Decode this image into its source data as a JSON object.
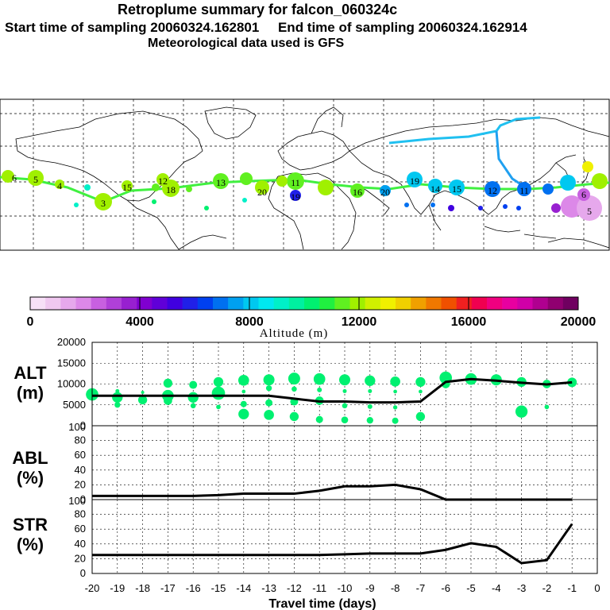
{
  "header": {
    "title": "Retroplume summary for falcon_060324c",
    "start_label": "Start time of sampling 20060324.162801",
    "end_label": "End time of sampling 20060324.162914",
    "met_label": "Meteorological data used is GFS"
  },
  "colorbar": {
    "label": "Altitude (m)",
    "tick_labels": [
      "0",
      "4000",
      "8000",
      "12000",
      "16000",
      "20000"
    ],
    "colors": [
      "#f7e0f7",
      "#f0c8f0",
      "#e6a8ec",
      "#dc88e8",
      "#c860e0",
      "#b040d8",
      "#9820d0",
      "#8000d0",
      "#6000d8",
      "#4000e0",
      "#2020e8",
      "#0040f0",
      "#0070f0",
      "#00a0f0",
      "#00c8f0",
      "#00e8f0",
      "#00f0c8",
      "#00f0a0",
      "#00f070",
      "#20f040",
      "#60f020",
      "#a0f000",
      "#d0f000",
      "#f0f000",
      "#f0d000",
      "#f0a000",
      "#f07800",
      "#f05000",
      "#f02020",
      "#f00050",
      "#f00080",
      "#e800a0",
      "#d000a8",
      "#b00090",
      "#900070",
      "#700060"
    ]
  },
  "map": {
    "labels": [
      {
        "text": "6",
        "c": "#a0f000"
      },
      {
        "text": "5",
        "c": "#a0f000"
      },
      {
        "text": "4",
        "c": "#a0f000"
      },
      {
        "text": "3",
        "c": "#a0f000"
      },
      {
        "text": "15",
        "c": "#a0f000"
      },
      {
        "text": "12",
        "c": "#a0f000"
      },
      {
        "text": "18",
        "c": "#a0f000"
      },
      {
        "text": "13",
        "c": "#60f020"
      },
      {
        "text": "11",
        "c": "#60f020"
      },
      {
        "text": "20",
        "c": "#60f020"
      },
      {
        "text": "19",
        "c": "#00a0f0"
      },
      {
        "text": "16",
        "c": "#00c8f0"
      },
      {
        "text": "20",
        "c": "#00c8f0"
      },
      {
        "text": "19",
        "c": "#00c8f0"
      },
      {
        "text": "14",
        "c": "#0070f0"
      },
      {
        "text": "15",
        "c": "#0070f0"
      },
      {
        "text": "12",
        "c": "#c860e0"
      },
      {
        "text": "11",
        "c": "#dc88e8"
      },
      {
        "text": "6",
        "c": "#a0f000"
      },
      {
        "text": "5",
        "c": "#f0f000"
      }
    ]
  },
  "chart_data": [
    {
      "type": "line",
      "panel": "ALT",
      "ylabel": "ALT (m)",
      "ylim": [
        0,
        20000
      ],
      "yticks": [
        "0",
        "5000",
        "10000",
        "15000",
        "20000"
      ],
      "x": [
        -20,
        -19,
        -18,
        -17,
        -16,
        -15,
        -14,
        -13,
        -12,
        -11,
        -10,
        -9,
        -8,
        -7,
        -6,
        -5,
        -4,
        -3,
        -2,
        -1
      ],
      "values": [
        7200,
        7200,
        7200,
        7200,
        7200,
        7200,
        7200,
        7200,
        6500,
        5800,
        5800,
        5600,
        5600,
        5800,
        10500,
        11200,
        10800,
        10300,
        9900,
        10400
      ],
      "scatter": [
        {
          "x": -20,
          "y": 7500
        },
        {
          "x": -19,
          "y": 8300
        },
        {
          "x": -19,
          "y": 6800
        },
        {
          "x": -19,
          "y": 5000
        },
        {
          "x": -18,
          "y": 8000
        },
        {
          "x": -18,
          "y": 6200
        },
        {
          "x": -17,
          "y": 10200
        },
        {
          "x": -17,
          "y": 7200
        },
        {
          "x": -17,
          "y": 6000
        },
        {
          "x": -16,
          "y": 9800
        },
        {
          "x": -16,
          "y": 6800
        },
        {
          "x": -16,
          "y": 4800
        },
        {
          "x": -15,
          "y": 10500
        },
        {
          "x": -15,
          "y": 7800
        },
        {
          "x": -15,
          "y": 4500
        },
        {
          "x": -14,
          "y": 10900
        },
        {
          "x": -14,
          "y": 8200
        },
        {
          "x": -14,
          "y": 5200
        },
        {
          "x": -14,
          "y": 2800
        },
        {
          "x": -13,
          "y": 11000
        },
        {
          "x": -13,
          "y": 9000
        },
        {
          "x": -13,
          "y": 5500
        },
        {
          "x": -13,
          "y": 2600
        },
        {
          "x": -12,
          "y": 11300
        },
        {
          "x": -12,
          "y": 8800
        },
        {
          "x": -12,
          "y": 5800
        },
        {
          "x": -12,
          "y": 2200
        },
        {
          "x": -11,
          "y": 11200
        },
        {
          "x": -11,
          "y": 8600
        },
        {
          "x": -11,
          "y": 6000
        },
        {
          "x": -11,
          "y": 1500
        },
        {
          "x": -10,
          "y": 11000
        },
        {
          "x": -10,
          "y": 8300
        },
        {
          "x": -10,
          "y": 4800
        },
        {
          "x": -10,
          "y": 1400
        },
        {
          "x": -9,
          "y": 10800
        },
        {
          "x": -9,
          "y": 8300
        },
        {
          "x": -9,
          "y": 4600
        },
        {
          "x": -9,
          "y": 1300
        },
        {
          "x": -8,
          "y": 10600
        },
        {
          "x": -8,
          "y": 8200
        },
        {
          "x": -8,
          "y": 4400
        },
        {
          "x": -8,
          "y": 1200
        },
        {
          "x": -7,
          "y": 10500
        },
        {
          "x": -7,
          "y": 8200
        },
        {
          "x": -7,
          "y": 2200
        },
        {
          "x": -6,
          "y": 11500
        },
        {
          "x": -6,
          "y": 10000
        },
        {
          "x": -5,
          "y": 11200
        },
        {
          "x": -4,
          "y": 11000
        },
        {
          "x": -3,
          "y": 10500
        },
        {
          "x": -3,
          "y": 3400
        },
        {
          "x": -2,
          "y": 10000
        },
        {
          "x": -2,
          "y": 4500
        },
        {
          "x": -1,
          "y": 10400
        }
      ]
    },
    {
      "type": "line",
      "panel": "ABL",
      "ylabel": "ABL (%)",
      "ylim": [
        0,
        100
      ],
      "yticks": [
        "0",
        "20",
        "40",
        "60",
        "80",
        "100"
      ],
      "x": [
        -20,
        -19,
        -18,
        -17,
        -16,
        -15,
        -14,
        -13,
        -12,
        -11,
        -10,
        -9,
        -8,
        -7,
        -6,
        -5,
        -4,
        -3,
        -2,
        -1
      ],
      "values": [
        5,
        5,
        5,
        5,
        5,
        6,
        8,
        8,
        8,
        12,
        18,
        18,
        20,
        14,
        0,
        0,
        0,
        0,
        0,
        0
      ]
    },
    {
      "type": "line",
      "panel": "STR",
      "ylabel": "STR (%)",
      "ylim": [
        0,
        100
      ],
      "yticks": [
        "0",
        "20",
        "40",
        "60",
        "80",
        "100"
      ],
      "x": [
        -20,
        -19,
        -18,
        -17,
        -16,
        -15,
        -14,
        -13,
        -12,
        -11,
        -10,
        -9,
        -8,
        -7,
        -6,
        -5,
        -4,
        -3,
        -2,
        -1
      ],
      "values": [
        25,
        25,
        25,
        25,
        25,
        25,
        25,
        25,
        25,
        25,
        26,
        27,
        27,
        27,
        32,
        41,
        36,
        14,
        18,
        67
      ],
      "xlabel": "Travel time (days)",
      "xticks": [
        "-20",
        "-19",
        "-18",
        "-17",
        "-16",
        "-15",
        "-14",
        "-13",
        "-12",
        "-11",
        "-10",
        "-9",
        "-8",
        "-7",
        "-6",
        "-5",
        "-4",
        "-3",
        "-2",
        "-1",
        "0"
      ]
    }
  ]
}
